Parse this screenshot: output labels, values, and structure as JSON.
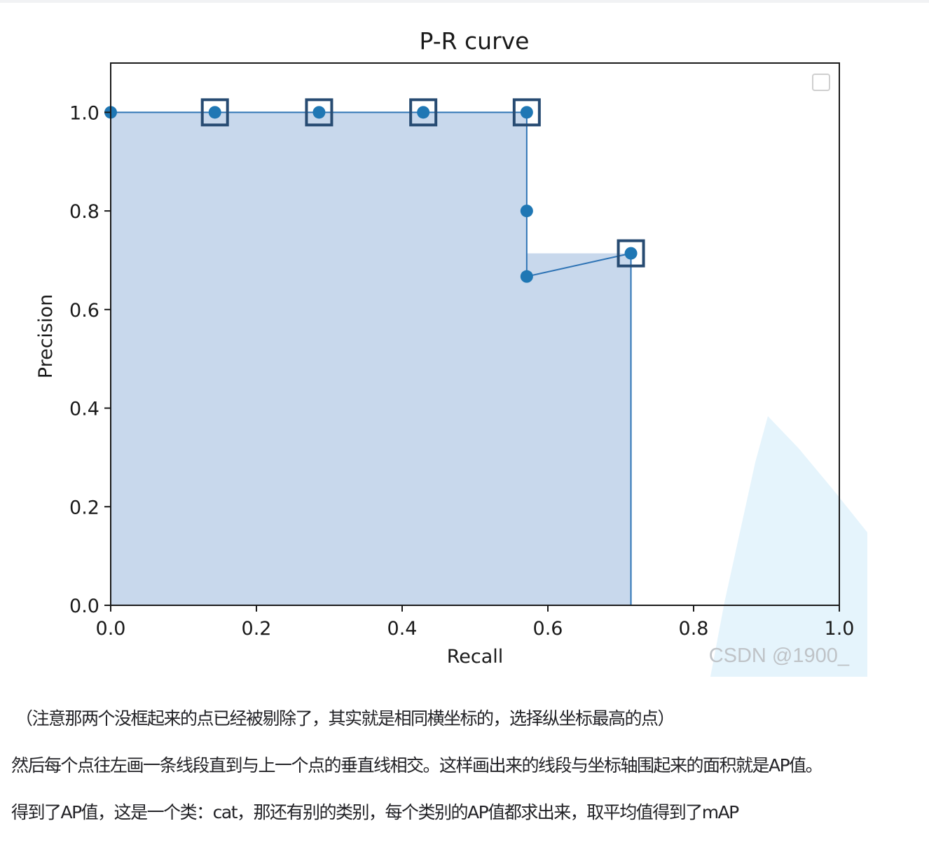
{
  "chart_data": {
    "type": "line",
    "title": "P-R curve",
    "xlabel": "Recall",
    "ylabel": "Precision",
    "xlim": [
      0.0,
      1.0
    ],
    "ylim": [
      0.0,
      1.1
    ],
    "xticks": [
      "0.0",
      "0.2",
      "0.4",
      "0.6",
      "0.8",
      "1.0"
    ],
    "yticks": [
      "0.0",
      "0.2",
      "0.4",
      "0.6",
      "0.8",
      "1.0"
    ],
    "grid": false,
    "legend": "top-right (empty)",
    "series": [
      {
        "x": [
          0.0,
          0.143,
          0.286,
          0.429,
          0.571,
          0.571,
          0.571,
          0.714
        ],
        "y": [
          1.0,
          1.0,
          1.0,
          1.0,
          1.0,
          0.8,
          0.667,
          0.714
        ]
      }
    ],
    "boxed_points": [
      {
        "x": 0.143,
        "y": 1.0
      },
      {
        "x": 0.286,
        "y": 1.0
      },
      {
        "x": 0.429,
        "y": 1.0
      },
      {
        "x": 0.571,
        "y": 1.0
      },
      {
        "x": 0.714,
        "y": 0.714
      }
    ],
    "filled_area": {
      "x": [
        0.0,
        0.571,
        0.571,
        0.714,
        0.714
      ],
      "y": [
        1.0,
        1.0,
        0.714,
        0.714,
        0.0
      ]
    },
    "colors": {
      "line": "#2f74b5",
      "marker": "#1f77b4",
      "box": "#274b72",
      "fill": "#c8d8ec",
      "axes": "#1a1a1a"
    }
  },
  "watermark": "CSDN @1900_",
  "paragraphs": [
    "（注意那两个没框起来的点已经被剔除了，其实就是相同横坐标的，选择纵坐标最高的点）",
    "然后每个点往左画一条线段直到与上一个点的垂直线相交。这样画出来的线段与坐标轴围起来的面积就是AP值。",
    "得到了AP值，这是一个类：cat，那还有别的类别，每个类别的AP值都求出来，取平均值得到了mAP"
  ]
}
